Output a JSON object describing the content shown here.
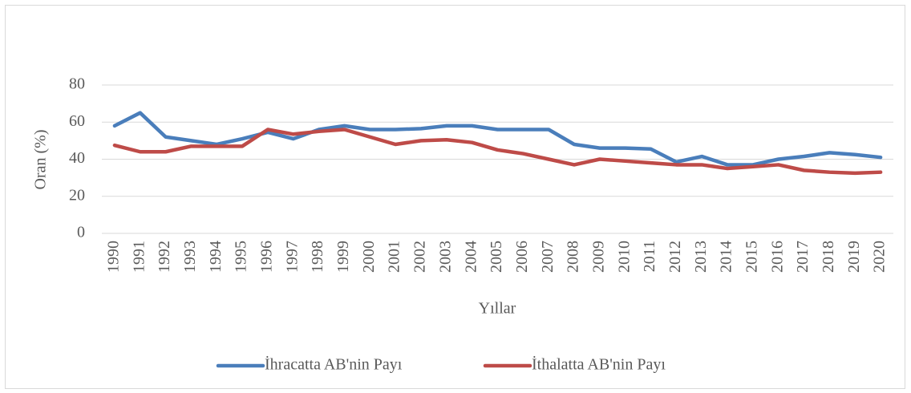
{
  "chart_data": {
    "type": "line",
    "x_label": "Yıllar",
    "y_label": "Oran (%)",
    "categories": [
      "1990",
      "1991",
      "1992",
      "1993",
      "1994",
      "1995",
      "1996",
      "1997",
      "1998",
      "1999",
      "2000",
      "2001",
      "2002",
      "2003",
      "2004",
      "2005",
      "2006",
      "2007",
      "2008",
      "2009",
      "2010",
      "2011",
      "2012",
      "2013",
      "2014",
      "2015",
      "2016",
      "2017",
      "2018",
      "2019",
      "2020"
    ],
    "series": [
      {
        "name": "İhracatta AB'nin Payı",
        "color": "#4a7ebb",
        "values": [
          58,
          65,
          52,
          50,
          48,
          51,
          54.5,
          51,
          56,
          58,
          56,
          56,
          56.5,
          58,
          58,
          56,
          56,
          56,
          48,
          46,
          46,
          45.5,
          38.5,
          41.5,
          37,
          37,
          40,
          41.5,
          43.5,
          42.5,
          41
        ]
      },
      {
        "name": "İthalatta AB'nin Payı",
        "color": "#be4b48",
        "values": [
          47.5,
          44,
          44,
          47,
          47,
          47,
          56,
          53.5,
          55,
          56,
          52,
          48,
          50,
          50.5,
          49,
          45,
          43,
          40,
          37,
          40,
          39,
          38,
          37,
          37,
          35,
          36,
          37,
          34,
          33,
          32.5,
          33
        ]
      }
    ],
    "ylim": [
      0,
      80
    ],
    "yticks": [
      0,
      20,
      40,
      60,
      80
    ],
    "grid": true,
    "legend": "bottom"
  }
}
